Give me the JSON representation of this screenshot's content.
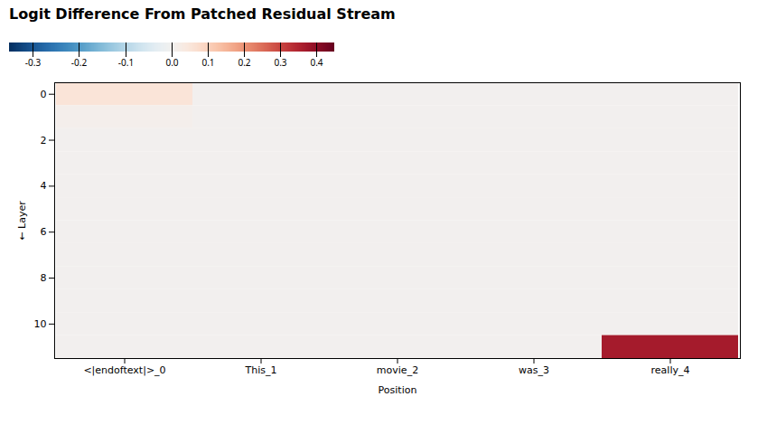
{
  "chart_data": {
    "type": "heatmap",
    "title": "Logit Difference From Patched Residual Stream",
    "xlabel": "Position",
    "ylabel": "Layer",
    "categories": [
      "<|endoftext|>_0",
      "This_1",
      "movie_2",
      "was_3",
      "really_4"
    ],
    "ylim": [
      11.5,
      -0.5
    ],
    "yticks": [
      0,
      2,
      4,
      6,
      8,
      10
    ],
    "values": [
      [
        0.055,
        0.0,
        0.0,
        0.0,
        0.0
      ],
      [
        0.01,
        0.0,
        0.0,
        0.0,
        0.0
      ],
      [
        0.0,
        0.0,
        0.0,
        0.0,
        0.0
      ],
      [
        0.0,
        0.0,
        0.0,
        0.0,
        0.0
      ],
      [
        0.0,
        0.0,
        0.0,
        0.0,
        0.0
      ],
      [
        0.0,
        0.0,
        0.0,
        0.0,
        0.0
      ],
      [
        0.0,
        0.0,
        0.0,
        0.0,
        0.0
      ],
      [
        0.0,
        0.0,
        0.0,
        0.0,
        0.0
      ],
      [
        0.0,
        0.0,
        0.0,
        0.0,
        0.0
      ],
      [
        0.0,
        0.0,
        0.0,
        0.0,
        0.0
      ],
      [
        0.0,
        0.0,
        0.0,
        0.0,
        0.0
      ],
      [
        0.0,
        0.0,
        0.0,
        0.0,
        0.37
      ]
    ],
    "colorbar_range": [
      -0.35,
      0.45
    ],
    "colorbar_ticks": [
      0.4,
      0.3,
      0.2,
      0.1,
      {
        "value": 0.0,
        "label": "0.0"
      },
      -0.1,
      -0.2,
      -0.3
    ]
  }
}
